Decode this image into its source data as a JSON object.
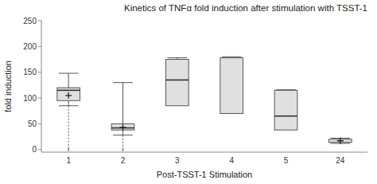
{
  "chart_data": {
    "type": "box",
    "title": "Kinetics of TNFα fold induction after stimulation with TSST-1",
    "x_label": "Post-TSST-1 Stimulation",
    "y_label": "fold induction",
    "categories": [
      "1",
      "2",
      "3",
      "4",
      "5",
      "24"
    ],
    "ylim": [
      -5,
      250
    ],
    "yticks": [
      0,
      50,
      100,
      150,
      200,
      250
    ],
    "color": "#e0e0e0",
    "boxes": [
      {
        "q1": 95,
        "median": 115,
        "q3": 120,
        "mean": 105,
        "whisker_low": 85,
        "whisker_high": 148,
        "lower_tick": 0
      },
      {
        "q1": 38,
        "median": 42,
        "q3": 50,
        "mean": 43,
        "whisker_low": 28,
        "whisker_high": 130,
        "lower_tick": 0
      },
      {
        "q1": 85,
        "median": 135,
        "q3": 175,
        "mean": null,
        "whisker_low": null,
        "whisker_high": 178,
        "lower_tick": null
      },
      {
        "q1": 70,
        "median": null,
        "q3": 178,
        "mean": null,
        "whisker_low": null,
        "whisker_high": 180,
        "lower_tick": null
      },
      {
        "q1": 38,
        "median": 65,
        "q3": 115,
        "mean": null,
        "whisker_low": null,
        "whisker_high": 116,
        "lower_tick": null
      },
      {
        "q1": 14,
        "median": null,
        "q3": 20,
        "mean": 17,
        "whisker_low": 12,
        "whisker_high": 22,
        "lower_tick": null
      }
    ]
  }
}
